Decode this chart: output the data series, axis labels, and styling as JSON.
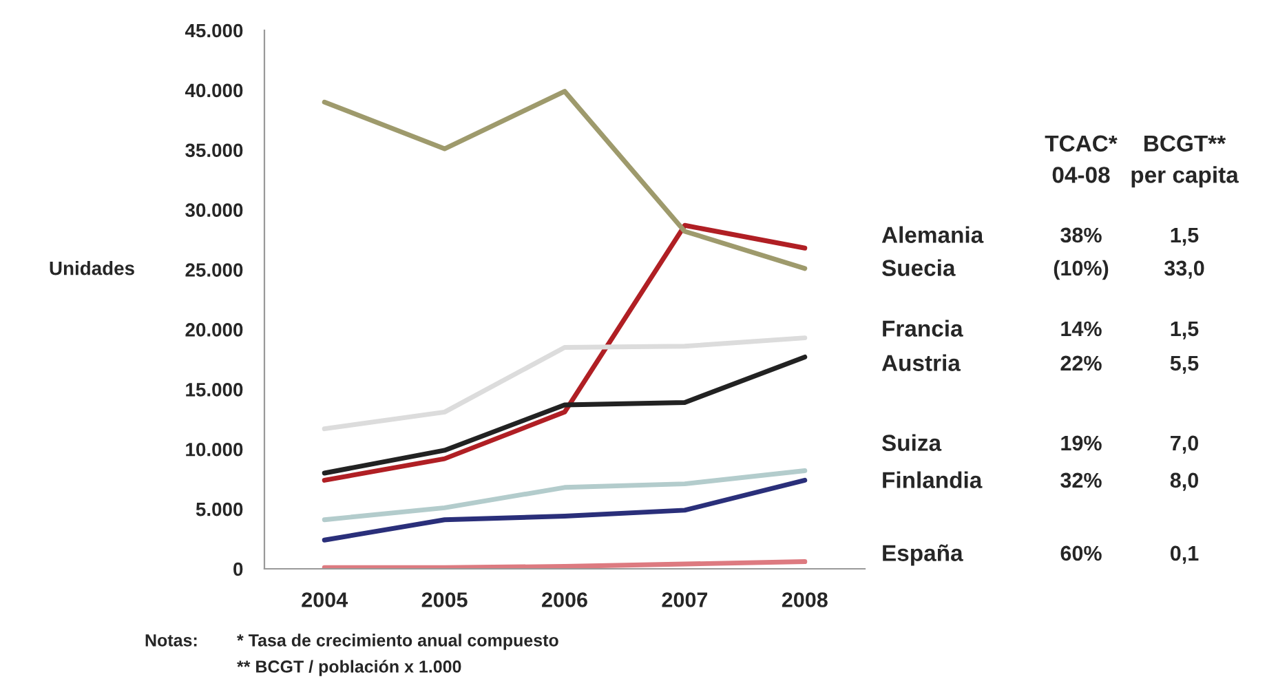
{
  "chart_data": {
    "type": "line",
    "ylabel": "Unidades",
    "categories": [
      "2004",
      "2005",
      "2006",
      "2007",
      "2008"
    ],
    "series": [
      {
        "name": "Alemania",
        "color": "#b01f24",
        "values": [
          7400,
          9200,
          13100,
          28700,
          26800
        ]
      },
      {
        "name": "Suecia",
        "color": "#9e9a6c",
        "values": [
          39000,
          35100,
          39900,
          28200,
          25100
        ]
      },
      {
        "name": "Francia",
        "color": "#dcdcdc",
        "values": [
          11700,
          13100,
          18500,
          18600,
          19300
        ]
      },
      {
        "name": "Austria",
        "color": "#222222",
        "values": [
          8000,
          9900,
          13700,
          13900,
          17700
        ]
      },
      {
        "name": "Suiza",
        "color": "#b3cccc",
        "values": [
          4100,
          5100,
          6800,
          7100,
          8200
        ]
      },
      {
        "name": "Finlandia",
        "color": "#2a2f7a",
        "values": [
          2400,
          4100,
          4400,
          4900,
          7400
        ]
      },
      {
        "name": "España",
        "color": "#dd7a80",
        "values": [
          100,
          100,
          200,
          400,
          600
        ]
      }
    ],
    "ylim": [
      0,
      45000
    ],
    "yticks": [
      0,
      {
        "value": 5000,
        "label": "5.000"
      },
      {
        "value": 10000,
        "label": "10.000"
      },
      {
        "value": 15000,
        "label": "15.000"
      },
      {
        "value": 20000,
        "label": "20.000"
      },
      {
        "value": 25000,
        "label": "25.000"
      },
      {
        "value": 30000,
        "label": "30.000"
      },
      {
        "value": 35000,
        "label": "35.000"
      },
      {
        "value": 40000,
        "label": "40.000"
      },
      {
        "value": 45000,
        "label": "45.000"
      }
    ],
    "grid": false,
    "legend": false,
    "marker": "none",
    "line_style": "solid",
    "annotations": [
      "TCAC*\n04-08",
      "BCGT**\nper capita",
      "38%",
      "1,5",
      "(10%)",
      "33,0",
      "14%",
      "1,5",
      "22%",
      "5,5",
      "19%",
      "7,0",
      "32%",
      "8,0",
      "60%",
      "0,1",
      "Notas:",
      "* Tasa de crecimiento anual compuesto",
      "** BCGT / población x 1.000"
    ]
  }
}
